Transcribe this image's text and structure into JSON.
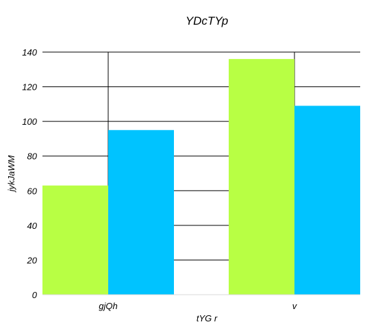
{
  "chart_data": {
    "type": "bar",
    "title": "YDcTYp",
    "xlabel": "tYG r",
    "ylabel": "jykJaWM",
    "categories": [
      "gjQh",
      "v"
    ],
    "series": [
      {
        "values": [
          63,
          136
        ],
        "color": "#b8ff44"
      },
      {
        "values": [
          95,
          109
        ],
        "color": "#00c3ff"
      }
    ],
    "ylim": [
      0,
      140
    ],
    "yticks": [
      0,
      20,
      40,
      60,
      80,
      100,
      120,
      140
    ],
    "grid": true,
    "legend": "none"
  }
}
